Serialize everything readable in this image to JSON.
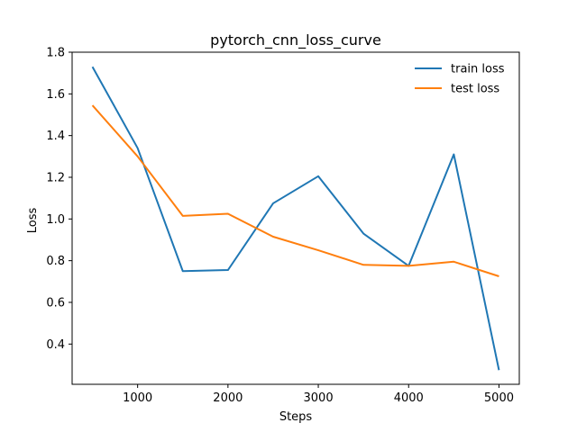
{
  "chart_data": {
    "type": "line",
    "title": "pytorch_cnn_loss_curve",
    "xlabel": "Steps",
    "ylabel": "Loss",
    "xlim": [
      275,
      5225
    ],
    "ylim": [
      0.207,
      1.8
    ],
    "xticks": [
      1000,
      2000,
      3000,
      4000,
      5000
    ],
    "xtick_labels": [
      "1000",
      "2000",
      "3000",
      "4000",
      "5000"
    ],
    "yticks": [
      0.4,
      0.6,
      0.8,
      1.0,
      1.2,
      1.4,
      1.6,
      1.8
    ],
    "ytick_labels": [
      "0.4",
      "0.6",
      "0.8",
      "1.0",
      "1.2",
      "1.4",
      "1.6",
      "1.8"
    ],
    "grid": false,
    "legend_position": "top-right",
    "x": [
      500,
      1000,
      1500,
      2000,
      2500,
      3000,
      3500,
      4000,
      4500,
      5000
    ],
    "series": [
      {
        "name": "train loss",
        "color": "#1f77b4",
        "values": [
          1.73,
          1.34,
          0.75,
          0.755,
          1.075,
          1.205,
          0.93,
          0.775,
          1.31,
          0.275
        ]
      },
      {
        "name": "test loss",
        "color": "#ff7f0e",
        "values": [
          1.545,
          1.3,
          1.015,
          1.025,
          0.915,
          0.85,
          0.78,
          0.775,
          0.795,
          0.725
        ]
      }
    ]
  }
}
